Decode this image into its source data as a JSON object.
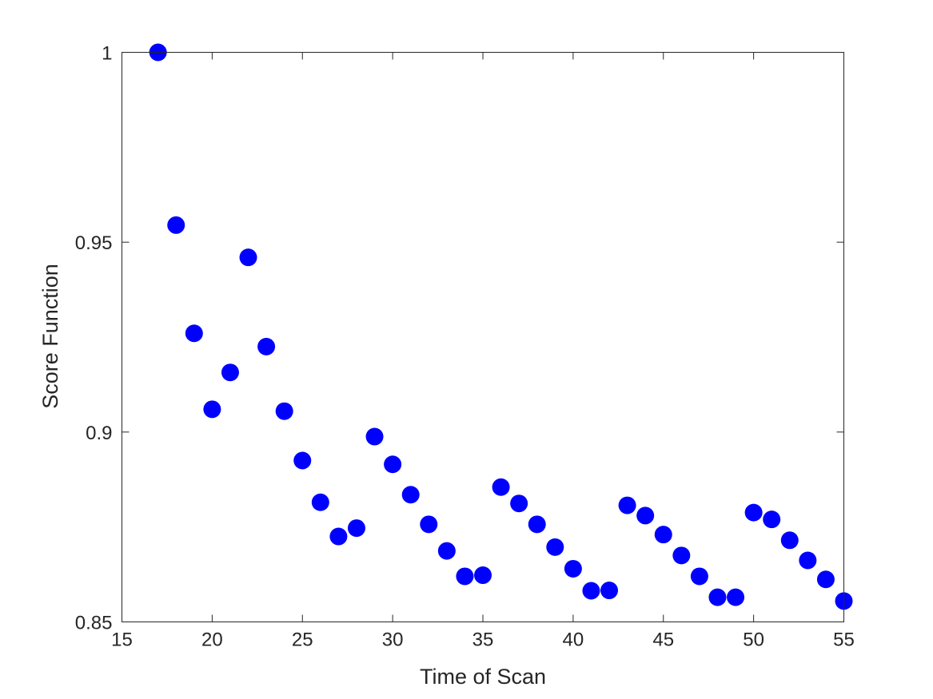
{
  "chart_data": {
    "type": "scatter",
    "title": "",
    "xlabel": "Time of Scan",
    "ylabel": "Score Function",
    "xlim": [
      15,
      55
    ],
    "ylim": [
      0.85,
      1
    ],
    "xticks": [
      15,
      20,
      25,
      30,
      35,
      40,
      45,
      50,
      55
    ],
    "xtick_labels": [
      "15",
      "20",
      "25",
      "30",
      "35",
      "40",
      "45",
      "50",
      "55"
    ],
    "yticks": [
      0.85,
      0.9,
      0.95,
      1
    ],
    "ytick_labels": [
      "0.85",
      "0.9",
      "0.95",
      "1"
    ],
    "grid": false,
    "marker_color": "#0000ff",
    "series": [
      {
        "x": [
          17,
          18,
          19,
          20,
          21,
          22,
          23,
          24,
          25,
          26,
          27,
          28,
          29,
          30,
          31,
          32,
          33,
          34,
          35,
          36,
          37,
          38,
          39,
          40,
          41,
          42,
          43,
          44,
          45,
          46,
          47,
          48,
          49,
          50,
          51,
          52,
          53,
          54,
          55
        ],
        "values": [
          1.0,
          0.9545,
          0.926,
          0.906,
          0.9157,
          0.946,
          0.9225,
          0.9055,
          0.8925,
          0.8815,
          0.8725,
          0.8747,
          0.8988,
          0.8915,
          0.8835,
          0.8757,
          0.8687,
          0.862,
          0.8623,
          0.8855,
          0.8812,
          0.8757,
          0.8697,
          0.864,
          0.8582,
          0.8583,
          0.8807,
          0.878,
          0.873,
          0.8675,
          0.862,
          0.8565,
          0.8565,
          0.8788,
          0.877,
          0.8715,
          0.8662,
          0.8612,
          0.8555
        ]
      }
    ]
  }
}
